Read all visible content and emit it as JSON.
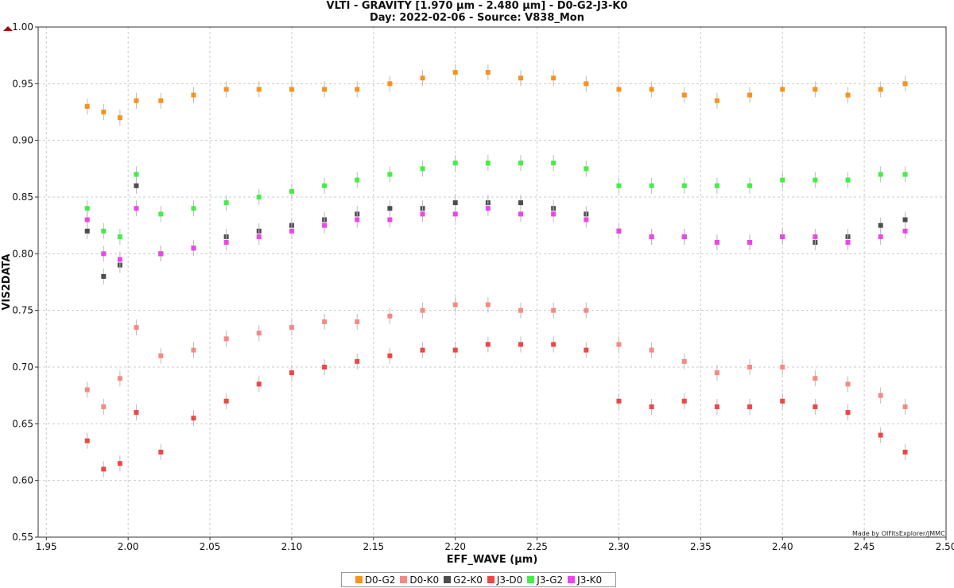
{
  "chart_data": {
    "type": "scatter",
    "title": "VLTI - GRAVITY [1.970 µm - 2.480 µm] - D0-G2-J3-K0",
    "subtitle": "Day: 2022-02-06 - Source: V838_Mon",
    "xlabel": "EFF_WAVE (µm)",
    "ylabel": "VIS2DATA",
    "xlim": [
      1.945,
      2.5
    ],
    "ylim": [
      0.55,
      1.0
    ],
    "xticks": [
      "1.95",
      "2.00",
      "2.05",
      "2.10",
      "2.15",
      "2.20",
      "2.25",
      "2.30",
      "2.35",
      "2.40",
      "2.45",
      "2.50"
    ],
    "yticks": [
      "0.55",
      "0.60",
      "0.65",
      "0.70",
      "0.75",
      "0.80",
      "0.85",
      "0.90",
      "0.95",
      "1.00"
    ],
    "grid": true,
    "legend_position": "bottom-center",
    "credit": "Made by OIFitsExplorer/JMMC",
    "series": [
      {
        "name": "D0-G2",
        "color": "#f7931e",
        "x": [
          1.975,
          1.985,
          1.995,
          2.005,
          2.02,
          2.04,
          2.06,
          2.08,
          2.1,
          2.12,
          2.14,
          2.16,
          2.18,
          2.2,
          2.22,
          2.24,
          2.26,
          2.28,
          2.3,
          2.32,
          2.34,
          2.36,
          2.38,
          2.4,
          2.42,
          2.44,
          2.46,
          2.475
        ],
        "y": [
          0.93,
          0.925,
          0.92,
          0.935,
          0.935,
          0.94,
          0.945,
          0.945,
          0.945,
          0.945,
          0.945,
          0.95,
          0.955,
          0.96,
          0.96,
          0.955,
          0.955,
          0.95,
          0.945,
          0.945,
          0.94,
          0.935,
          0.94,
          0.945,
          0.945,
          0.94,
          0.945,
          0.95
        ]
      },
      {
        "name": "D0-K0",
        "color": "#f58a85",
        "x": [
          1.975,
          1.985,
          1.995,
          2.005,
          2.02,
          2.04,
          2.06,
          2.08,
          2.1,
          2.12,
          2.14,
          2.16,
          2.18,
          2.2,
          2.22,
          2.24,
          2.26,
          2.28,
          2.3,
          2.32,
          2.34,
          2.36,
          2.38,
          2.4,
          2.42,
          2.44,
          2.46,
          2.475
        ],
        "y": [
          0.68,
          0.665,
          0.69,
          0.735,
          0.71,
          0.715,
          0.725,
          0.73,
          0.735,
          0.74,
          0.74,
          0.745,
          0.75,
          0.755,
          0.755,
          0.75,
          0.75,
          0.75,
          0.72,
          0.715,
          0.705,
          0.695,
          0.7,
          0.7,
          0.69,
          0.685,
          0.675,
          0.665
        ]
      },
      {
        "name": "G2-K0",
        "color": "#4d4d4d",
        "x": [
          1.975,
          1.985,
          1.995,
          2.005,
          2.02,
          2.04,
          2.06,
          2.08,
          2.1,
          2.12,
          2.14,
          2.16,
          2.18,
          2.2,
          2.22,
          2.24,
          2.26,
          2.28,
          2.3,
          2.32,
          2.34,
          2.36,
          2.38,
          2.4,
          2.42,
          2.44,
          2.46,
          2.475
        ],
        "y": [
          0.82,
          0.78,
          0.79,
          0.86,
          0.8,
          0.805,
          0.815,
          0.82,
          0.825,
          0.83,
          0.835,
          0.84,
          0.84,
          0.845,
          0.845,
          0.845,
          0.84,
          0.835,
          0.82,
          0.815,
          0.815,
          0.81,
          0.81,
          0.815,
          0.81,
          0.815,
          0.825,
          0.83
        ]
      },
      {
        "name": "J3-D0",
        "color": "#f04646",
        "x": [
          1.975,
          1.985,
          1.995,
          2.005,
          2.02,
          2.04,
          2.06,
          2.08,
          2.1,
          2.12,
          2.14,
          2.16,
          2.18,
          2.2,
          2.22,
          2.24,
          2.26,
          2.28,
          2.3,
          2.32,
          2.34,
          2.36,
          2.38,
          2.4,
          2.42,
          2.44,
          2.46,
          2.475
        ],
        "y": [
          0.635,
          0.61,
          0.615,
          0.66,
          0.625,
          0.655,
          0.67,
          0.685,
          0.695,
          0.7,
          0.705,
          0.71,
          0.715,
          0.715,
          0.72,
          0.72,
          0.72,
          0.715,
          0.67,
          0.665,
          0.67,
          0.665,
          0.665,
          0.67,
          0.665,
          0.66,
          0.64,
          0.625
        ]
      },
      {
        "name": "J3-G2",
        "color": "#44ee44",
        "x": [
          1.975,
          1.985,
          1.995,
          2.005,
          2.02,
          2.04,
          2.06,
          2.08,
          2.1,
          2.12,
          2.14,
          2.16,
          2.18,
          2.2,
          2.22,
          2.24,
          2.26,
          2.28,
          2.3,
          2.32,
          2.34,
          2.36,
          2.38,
          2.4,
          2.42,
          2.44,
          2.46,
          2.475
        ],
        "y": [
          0.84,
          0.82,
          0.815,
          0.87,
          0.835,
          0.84,
          0.845,
          0.85,
          0.855,
          0.86,
          0.865,
          0.87,
          0.875,
          0.88,
          0.88,
          0.88,
          0.88,
          0.875,
          0.86,
          0.86,
          0.86,
          0.86,
          0.86,
          0.865,
          0.865,
          0.865,
          0.87,
          0.87
        ]
      },
      {
        "name": "J3-K0",
        "color": "#ee44ee",
        "x": [
          1.975,
          1.985,
          1.995,
          2.005,
          2.02,
          2.04,
          2.06,
          2.08,
          2.1,
          2.12,
          2.14,
          2.16,
          2.18,
          2.2,
          2.22,
          2.24,
          2.26,
          2.28,
          2.3,
          2.32,
          2.34,
          2.36,
          2.38,
          2.4,
          2.42,
          2.44,
          2.46,
          2.475
        ],
        "y": [
          0.83,
          0.8,
          0.795,
          0.84,
          0.8,
          0.805,
          0.81,
          0.815,
          0.82,
          0.825,
          0.83,
          0.83,
          0.835,
          0.835,
          0.84,
          0.835,
          0.835,
          0.83,
          0.82,
          0.815,
          0.815,
          0.81,
          0.81,
          0.815,
          0.815,
          0.81,
          0.815,
          0.82
        ]
      }
    ]
  }
}
